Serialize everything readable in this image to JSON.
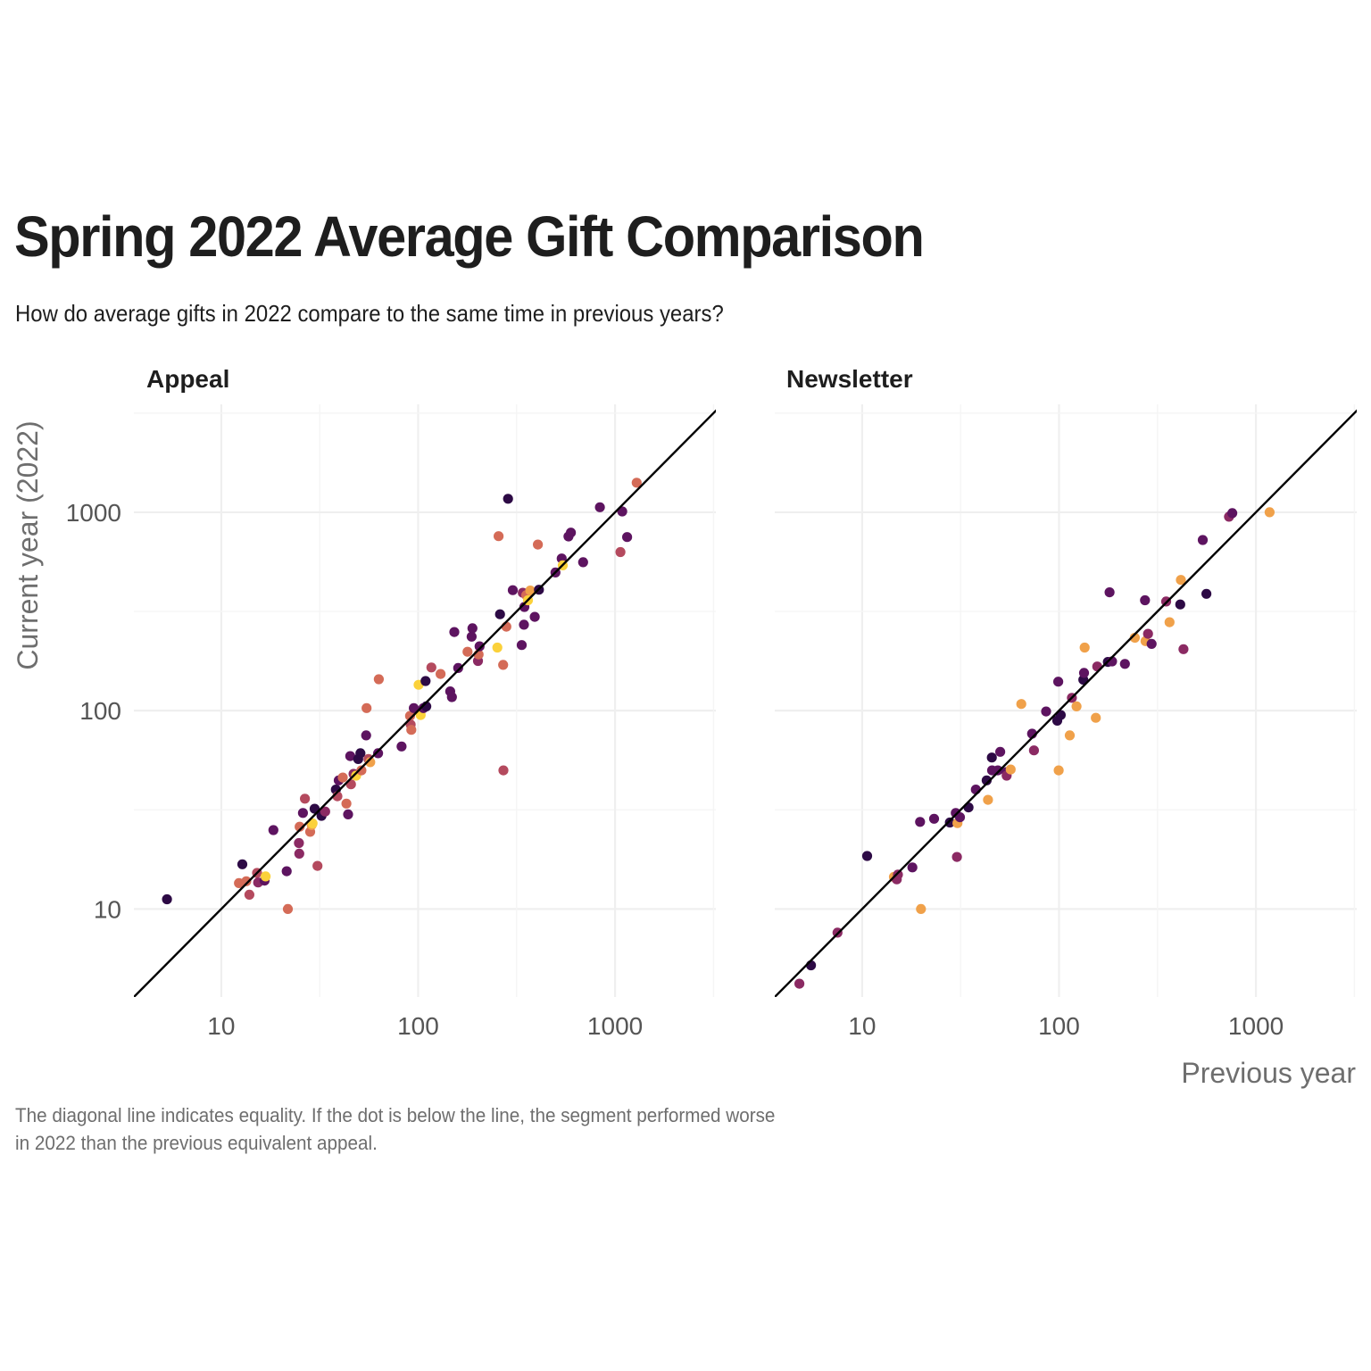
{
  "title": "Spring 2022 Average Gift Comparison",
  "subtitle": "How do average gifts in 2022 compare to the same time in previous years?",
  "caption_lines": [
    "The diagonal line indicates equality. If the dot is below the line, the segment performed worse",
    "in 2022 than the previous equivalent appeal."
  ],
  "chart_data": {
    "type": "scatter",
    "xlabel": "Previous year",
    "ylabel": "Current year (2022)",
    "x_scale": "log10",
    "y_scale": "log10",
    "xlim": [
      3.6,
      3250
    ],
    "ylim": [
      3.6,
      3500
    ],
    "x_ticks": [
      10,
      100,
      1000
    ],
    "y_ticks": [
      10,
      100,
      1000
    ],
    "x_tick_labels": [
      "10",
      "100",
      "1000"
    ],
    "y_tick_labels": [
      "10",
      "100",
      "1000"
    ],
    "grid": true,
    "reference_line": "y = x",
    "palette": [
      "#2d0a45",
      "#5d1460",
      "#8b2a63",
      "#b44a5e",
      "#d46b57",
      "#f0a14a",
      "#fbd13a"
    ],
    "panels": [
      {
        "name": "Appeal",
        "points": [
          [
            5.3,
            11.2,
            0
          ],
          [
            12.8,
            16.8,
            0
          ],
          [
            12.3,
            13.5,
            4
          ],
          [
            13.4,
            13.8,
            4
          ],
          [
            13.9,
            11.8,
            3
          ],
          [
            15.2,
            15.2,
            3
          ],
          [
            15.4,
            13.6,
            2
          ],
          [
            16.6,
            13.9,
            1
          ],
          [
            16.8,
            14.6,
            6
          ],
          [
            18.4,
            25.0,
            1
          ],
          [
            21.5,
            15.5,
            1
          ],
          [
            21.8,
            10.0,
            4
          ],
          [
            24.8,
            21.5,
            2
          ],
          [
            24.9,
            19.0,
            2
          ],
          [
            25.0,
            26.0,
            4
          ],
          [
            26.0,
            30.5,
            1
          ],
          [
            26.6,
            36.0,
            3
          ],
          [
            28.3,
            24.5,
            4
          ],
          [
            28.8,
            26.5,
            5
          ],
          [
            29.1,
            27.0,
            6
          ],
          [
            29.8,
            32.0,
            0
          ],
          [
            30.8,
            16.5,
            3
          ],
          [
            32.3,
            29.5,
            0
          ],
          [
            33.7,
            31.0,
            2
          ],
          [
            38.2,
            40.0,
            0
          ],
          [
            38.9,
            37.0,
            3
          ],
          [
            39.5,
            44.5,
            1
          ],
          [
            41.4,
            46.0,
            4
          ],
          [
            43.2,
            34.0,
            4
          ],
          [
            44.1,
            30.0,
            1
          ],
          [
            45.2,
            59.0,
            1
          ],
          [
            45.6,
            42.5,
            3
          ],
          [
            47.0,
            48.0,
            2
          ],
          [
            48.4,
            47.0,
            6
          ],
          [
            49.6,
            57.0,
            0
          ],
          [
            50.9,
            61.0,
            0
          ],
          [
            51.5,
            50.0,
            4
          ],
          [
            54.4,
            75.0,
            1
          ],
          [
            54.7,
            103.0,
            4
          ],
          [
            55.9,
            57.0,
            3
          ],
          [
            57.1,
            55.0,
            5
          ],
          [
            62.6,
            61.0,
            1
          ],
          [
            63.1,
            144.0,
            4
          ],
          [
            82.4,
            66.0,
            1
          ],
          [
            91.0,
            94.0,
            4
          ],
          [
            91.6,
            85.0,
            3
          ],
          [
            92.3,
            80.0,
            4
          ],
          [
            95.0,
            103.0,
            1
          ],
          [
            100.5,
            135.0,
            6
          ],
          [
            103.0,
            95.0,
            6
          ],
          [
            106.4,
            103.0,
            1
          ],
          [
            109.1,
            141.0,
            0
          ],
          [
            110.0,
            105.0,
            0
          ],
          [
            116.7,
            165.0,
            3
          ],
          [
            130.0,
            153.0,
            4
          ],
          [
            145.5,
            125.0,
            1
          ],
          [
            148.4,
            117.0,
            1
          ],
          [
            152.6,
            249.0,
            1
          ],
          [
            159.6,
            164.0,
            1
          ],
          [
            178.2,
            198.0,
            4
          ],
          [
            186.9,
            236.0,
            1
          ],
          [
            188.6,
            260.0,
            1
          ],
          [
            201.3,
            178.0,
            2
          ],
          [
            202.8,
            192.0,
            4
          ],
          [
            205.1,
            211.0,
            1
          ],
          [
            252.5,
            208.0,
            6
          ],
          [
            256.2,
            758.0,
            4
          ],
          [
            260.4,
            306.0,
            0
          ],
          [
            270.3,
            170.0,
            4
          ],
          [
            270.9,
            50.0,
            3
          ],
          [
            280.4,
            265.0,
            4
          ],
          [
            286.1,
            1170.0,
            0
          ],
          [
            302.3,
            405.0,
            1
          ],
          [
            335.7,
            214.0,
            1
          ],
          [
            340.0,
            393.0,
            2
          ],
          [
            344.5,
            271.0,
            1
          ],
          [
            346.2,
            333.0,
            1
          ],
          [
            353.9,
            382.0,
            4
          ],
          [
            361.2,
            360.0,
            6
          ],
          [
            371.0,
            403.0,
            5
          ],
          [
            390.9,
            297.0,
            1
          ],
          [
            405.6,
            687.0,
            4
          ],
          [
            410.8,
            407.0,
            0
          ],
          [
            497.9,
            497.0,
            1
          ],
          [
            535.7,
            585.0,
            1
          ],
          [
            542.7,
            540.0,
            6
          ],
          [
            579.9,
            755.0,
            1
          ],
          [
            596.4,
            790.0,
            1
          ],
          [
            688.6,
            560.0,
            1
          ],
          [
            837.5,
            1060.0,
            1
          ],
          [
            1064.4,
            630.0,
            3
          ],
          [
            1087.5,
            1010.0,
            1
          ],
          [
            1151.0,
            750.0,
            1
          ],
          [
            1287.5,
            1410.0,
            4
          ]
        ]
      },
      {
        "name": "Newsletter",
        "points": [
          [
            4.8,
            4.2,
            2
          ],
          [
            5.5,
            5.2,
            0
          ],
          [
            7.5,
            7.6,
            2
          ],
          [
            10.6,
            18.5,
            0
          ],
          [
            14.5,
            14.5,
            5
          ],
          [
            15.0,
            14.1,
            2
          ],
          [
            15.2,
            14.9,
            2
          ],
          [
            18.0,
            16.2,
            1
          ],
          [
            19.7,
            27.5,
            1
          ],
          [
            19.9,
            10.0,
            5
          ],
          [
            23.2,
            28.5,
            1
          ],
          [
            27.9,
            27.3,
            0
          ],
          [
            29.9,
            30.5,
            1
          ],
          [
            30.3,
            18.3,
            2
          ],
          [
            30.5,
            27.1,
            5
          ],
          [
            31.4,
            29.0,
            1
          ],
          [
            34.7,
            32.5,
            0
          ],
          [
            37.8,
            40.0,
            1
          ],
          [
            42.9,
            44.5,
            0
          ],
          [
            43.6,
            35.5,
            5
          ],
          [
            45.6,
            58.0,
            0
          ],
          [
            45.7,
            50.0,
            1
          ],
          [
            48.9,
            50.0,
            1
          ],
          [
            50.3,
            62.0,
            1
          ],
          [
            54.1,
            49.0,
            1
          ],
          [
            54.2,
            47.0,
            2
          ],
          [
            56.8,
            50.5,
            5
          ],
          [
            64.3,
            108.0,
            5
          ],
          [
            73.0,
            76.5,
            1
          ],
          [
            74.6,
            63.0,
            2
          ],
          [
            86.0,
            99.0,
            1
          ],
          [
            98.0,
            89.0,
            0
          ],
          [
            99.1,
            140.0,
            1
          ],
          [
            99.6,
            50.0,
            5
          ],
          [
            102.0,
            95.0,
            0
          ],
          [
            113.4,
            75.0,
            5
          ],
          [
            116.3,
            116.0,
            2
          ],
          [
            122.7,
            105.0,
            5
          ],
          [
            132.8,
            143.0,
            0
          ],
          [
            134.0,
            155.0,
            1
          ],
          [
            135.0,
            208.0,
            5
          ],
          [
            153.8,
            92.0,
            5
          ],
          [
            156.3,
            167.0,
            2
          ],
          [
            177.0,
            176.0,
            0
          ],
          [
            180.5,
            395.0,
            1
          ],
          [
            186.0,
            177.0,
            1
          ],
          [
            216.1,
            172.0,
            1
          ],
          [
            242.7,
            233.0,
            5
          ],
          [
            273.2,
            360.0,
            1
          ],
          [
            275.0,
            224.0,
            5
          ],
          [
            283.1,
            244.0,
            2
          ],
          [
            295.2,
            217.0,
            1
          ],
          [
            349.9,
            355.0,
            2
          ],
          [
            364.0,
            279.0,
            5
          ],
          [
            412.7,
            343.0,
            0
          ],
          [
            415.8,
            456.0,
            5
          ],
          [
            428.7,
            204.0,
            2
          ],
          [
            537.2,
            725.0,
            1
          ],
          [
            560.2,
            388.0,
            0
          ],
          [
            730.1,
            950.0,
            2
          ],
          [
            758.4,
            990.0,
            1
          ],
          [
            1173.4,
            1000.0,
            5
          ]
        ]
      }
    ]
  }
}
